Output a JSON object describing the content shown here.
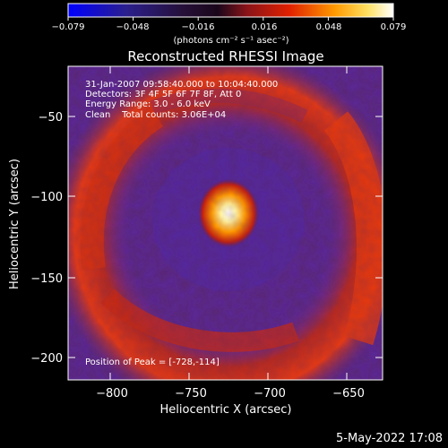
{
  "colorbar": {
    "tick_labels": [
      "−0.079",
      "−0.048",
      "−0.016",
      "0.016",
      "0.048",
      "0.079"
    ],
    "units": "(photons cm⁻² s⁻¹ asec⁻²)"
  },
  "title": "Reconstructed RHESSI Image",
  "annotations": {
    "time_range": "31-Jan-2007 09:58:40.000 to 10:04:40.000",
    "detectors": "Detectors: 3F 4F 5F 6F 7F 8F, Att 0",
    "energy": "Energy Range: 3.0 - 6.0 keV",
    "method": "Clean    Total counts: 3.06E+04",
    "peak": "Position of Peak = [-728,-114]"
  },
  "axes": {
    "xlabel": "Heliocentric X (arcsec)",
    "ylabel": "Heliocentric Y (arcsec)",
    "xticks": [
      "−800",
      "−750",
      "−700",
      "−650"
    ],
    "yticks": [
      "−50",
      "−100",
      "−150",
      "−200"
    ]
  },
  "footer": {
    "date": "5-May-2022 17:08"
  },
  "palette": {
    "background": "#000000",
    "foreground": "#ffffff",
    "ring": "#e03010",
    "core": "#ffffff",
    "negative": "#6a2a9c"
  }
}
